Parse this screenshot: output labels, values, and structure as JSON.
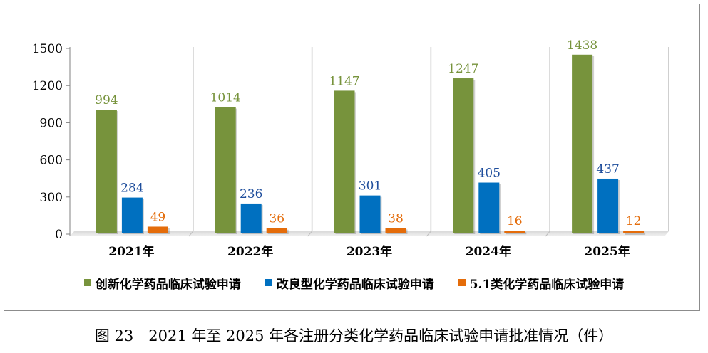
{
  "chart_data": {
    "type": "bar",
    "categories": [
      "2021年",
      "2022年",
      "2023年",
      "2024年",
      "2025年"
    ],
    "series": [
      {
        "name": "创新化学药品临床试验申请",
        "values": [
          994,
          1014,
          1147,
          1247,
          1438
        ],
        "color": "#77933c",
        "label_color": "#77933c"
      },
      {
        "name": "改良型化学药品临床试验申请",
        "values": [
          284,
          236,
          301,
          405,
          437
        ],
        "color": "#0070c0",
        "label_color": "#1f4e9c"
      },
      {
        "name": "5.1类化学药品临床试验申请",
        "values": [
          49,
          36,
          38,
          16,
          12
        ],
        "color": "#e46c0a",
        "label_color": "#e46c0a"
      }
    ],
    "y_ticks": [
      "0",
      "300",
      "600",
      "900",
      "1200",
      "1500"
    ],
    "ylim": [
      0,
      1500
    ],
    "legend_position": "bottom"
  },
  "caption": "图 23　2021 年至 2025 年各注册分类化学药品临床试验申请批准情况（件）"
}
